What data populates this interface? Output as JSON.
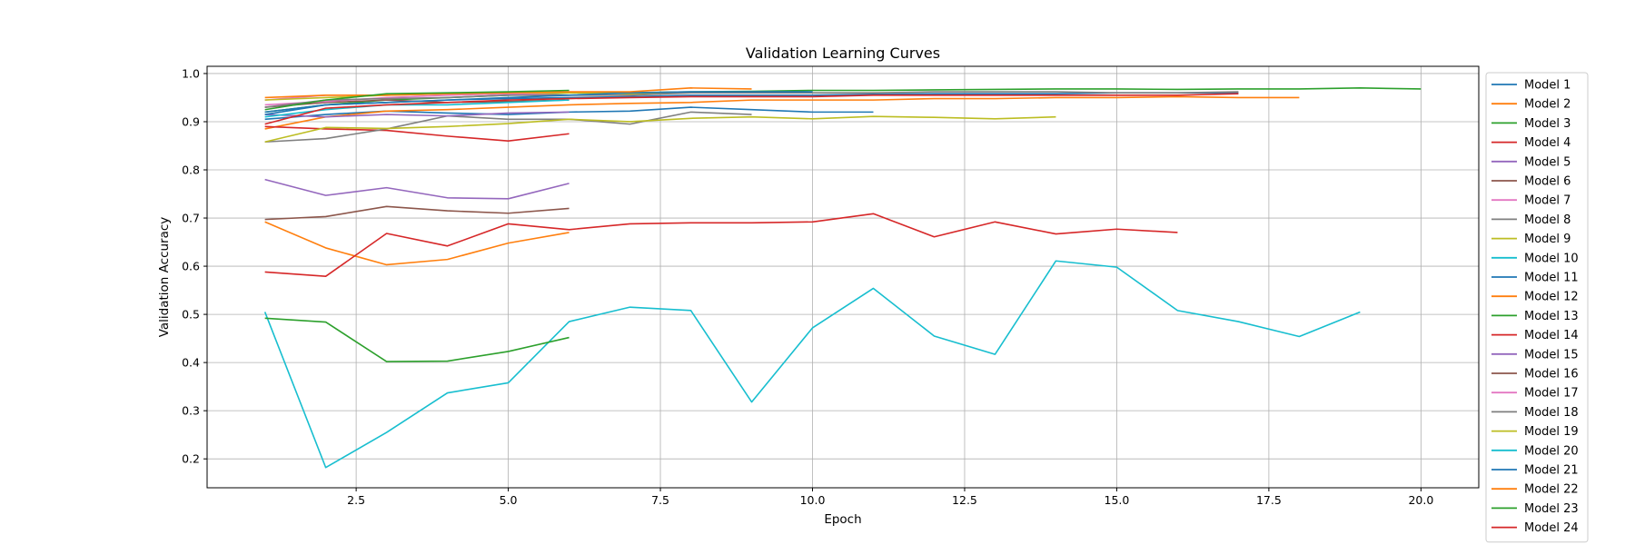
{
  "chart_data": {
    "type": "line",
    "title": "Validation Learning Curves",
    "xlabel": "Epoch",
    "ylabel": "Validation Accuracy",
    "xlim": [
      0.05,
      20.95
    ],
    "ylim": [
      0.14,
      1.015
    ],
    "xticks": [
      2.5,
      5.0,
      7.5,
      10.0,
      12.5,
      15.0,
      17.5,
      20.0
    ],
    "xtick_labels": [
      "2.5",
      "5.0",
      "7.5",
      "10.0",
      "12.5",
      "15.0",
      "17.5",
      "20.0"
    ],
    "yticks": [
      0.2,
      0.3,
      0.4,
      0.5,
      0.6,
      0.7,
      0.8,
      0.9,
      1.0
    ],
    "ytick_labels": [
      "0.2",
      "0.3",
      "0.4",
      "0.5",
      "0.6",
      "0.7",
      "0.8",
      "0.9",
      "1.0"
    ],
    "grid": true,
    "legend_position": "outside-right",
    "series": [
      {
        "name": "Model 1",
        "color": "#1f77b4",
        "x": [
          1,
          2,
          3,
          4,
          5,
          6,
          7,
          8,
          9,
          10,
          11
        ],
        "y": [
          0.905,
          0.915,
          0.922,
          0.918,
          0.915,
          0.92,
          0.922,
          0.93,
          0.925,
          0.92,
          0.92
        ]
      },
      {
        "name": "Model 2",
        "color": "#ff7f0e",
        "x": [
          1,
          2,
          3,
          4,
          5,
          6,
          7,
          8,
          9,
          10,
          11,
          12,
          13,
          14,
          15,
          16,
          17,
          18
        ],
        "y": [
          0.885,
          0.91,
          0.922,
          0.925,
          0.93,
          0.935,
          0.938,
          0.94,
          0.945,
          0.945,
          0.945,
          0.948,
          0.948,
          0.95,
          0.95,
          0.952,
          0.95,
          0.95
        ]
      },
      {
        "name": "Model 3",
        "color": "#2ca02c",
        "x": [
          1,
          2,
          3,
          4,
          5,
          6,
          7,
          8,
          9,
          10,
          11,
          12,
          13,
          14,
          15,
          16,
          17,
          18,
          19,
          20
        ],
        "y": [
          0.92,
          0.935,
          0.945,
          0.95,
          0.955,
          0.96,
          0.96,
          0.962,
          0.963,
          0.965,
          0.965,
          0.966,
          0.967,
          0.968,
          0.968,
          0.967,
          0.968,
          0.968,
          0.97,
          0.968
        ]
      },
      {
        "name": "Model 4",
        "color": "#d62728",
        "x": [
          1,
          2,
          3,
          4,
          5,
          6
        ],
        "y": [
          0.89,
          0.885,
          0.882,
          0.87,
          0.86,
          0.875
        ]
      },
      {
        "name": "Model 5",
        "color": "#9467bd",
        "x": [
          1,
          2,
          3,
          4,
          5,
          6
        ],
        "y": [
          0.78,
          0.747,
          0.763,
          0.742,
          0.74,
          0.772
        ]
      },
      {
        "name": "Model 6",
        "color": "#8c564b",
        "x": [
          1,
          2,
          3,
          4,
          5,
          6
        ],
        "y": [
          0.697,
          0.703,
          0.724,
          0.715,
          0.71,
          0.72
        ]
      },
      {
        "name": "Model 7",
        "color": "#e377c2",
        "x": [
          1,
          2,
          3,
          4,
          5,
          6
        ],
        "y": [
          0.945,
          0.955,
          0.955,
          0.958,
          0.96,
          0.96
        ]
      },
      {
        "name": "Model 8",
        "color": "#7f7f7f",
        "x": [
          1,
          2,
          3,
          4,
          5,
          6,
          7,
          8,
          9
        ],
        "y": [
          0.858,
          0.865,
          0.885,
          0.912,
          0.905,
          0.905,
          0.895,
          0.92,
          0.915
        ]
      },
      {
        "name": "Model 9",
        "color": "#bcbd22",
        "x": [
          1,
          2,
          3,
          4,
          5,
          6,
          7,
          8
        ],
        "y": [
          0.945,
          0.95,
          0.955,
          0.958,
          0.958,
          0.96,
          0.958,
          0.96
        ]
      },
      {
        "name": "Model 10",
        "color": "#17becf",
        "x": [
          1,
          2,
          3,
          4,
          5,
          6,
          7,
          8,
          9,
          10,
          11,
          12,
          13,
          14,
          15,
          16,
          17,
          18,
          19
        ],
        "y": [
          0.505,
          0.182,
          0.255,
          0.337,
          0.358,
          0.485,
          0.515,
          0.508,
          0.318,
          0.472,
          0.554,
          0.455,
          0.417,
          0.611,
          0.598,
          0.508,
          0.485,
          0.454,
          0.505
        ]
      },
      {
        "name": "Model 11",
        "color": "#1f77b4",
        "x": [
          1,
          2,
          3,
          4,
          5,
          6,
          7,
          8,
          9,
          10,
          11,
          12,
          13,
          14,
          15,
          16,
          17
        ],
        "y": [
          0.92,
          0.935,
          0.94,
          0.945,
          0.948,
          0.95,
          0.952,
          0.955,
          0.955,
          0.955,
          0.957,
          0.958,
          0.958,
          0.958,
          0.96,
          0.96,
          0.96
        ]
      },
      {
        "name": "Model 12",
        "color": "#ff7f0e",
        "x": [
          1,
          2,
          3,
          4,
          5,
          6
        ],
        "y": [
          0.692,
          0.638,
          0.603,
          0.614,
          0.648,
          0.67
        ]
      },
      {
        "name": "Model 13",
        "color": "#2ca02c",
        "x": [
          1,
          2,
          3,
          4,
          5,
          6
        ],
        "y": [
          0.492,
          0.484,
          0.402,
          0.403,
          0.423,
          0.452
        ]
      },
      {
        "name": "Model 14",
        "color": "#d62728",
        "x": [
          1,
          2,
          3,
          4,
          5,
          6,
          7,
          8,
          9,
          10,
          11,
          12,
          13,
          14,
          15,
          16
        ],
        "y": [
          0.588,
          0.579,
          0.668,
          0.642,
          0.688,
          0.676,
          0.688,
          0.69,
          0.69,
          0.692,
          0.709,
          0.661,
          0.692,
          0.667,
          0.677,
          0.67
        ]
      },
      {
        "name": "Model 15",
        "color": "#9467bd",
        "x": [
          1,
          2,
          3,
          4,
          5,
          6
        ],
        "y": [
          0.915,
          0.91,
          0.915,
          0.912,
          0.918,
          0.92
        ]
      },
      {
        "name": "Model 16",
        "color": "#8c564b",
        "x": [
          1,
          2,
          3,
          4,
          5,
          6
        ],
        "y": [
          0.93,
          0.94,
          0.945,
          0.94,
          0.942,
          0.945
        ]
      },
      {
        "name": "Model 17",
        "color": "#e377c2",
        "x": [
          1,
          2,
          3,
          4,
          5,
          6
        ],
        "y": [
          0.935,
          0.942,
          0.95,
          0.955,
          0.958,
          0.955
        ]
      },
      {
        "name": "Model 18",
        "color": "#7f7f7f",
        "x": [
          1,
          2,
          3,
          4,
          5,
          6,
          7,
          8,
          9,
          10,
          11,
          12,
          13,
          14,
          15,
          16,
          17
        ],
        "y": [
          0.93,
          0.945,
          0.948,
          0.95,
          0.955,
          0.955,
          0.955,
          0.96,
          0.96,
          0.96,
          0.96,
          0.962,
          0.962,
          0.962,
          0.96,
          0.96,
          0.962
        ]
      },
      {
        "name": "Model 19",
        "color": "#bcbd22",
        "x": [
          1,
          2,
          3,
          4,
          5,
          6,
          7,
          8,
          9,
          10,
          11,
          12,
          13,
          14
        ],
        "y": [
          0.858,
          0.888,
          0.886,
          0.89,
          0.896,
          0.905,
          0.9,
          0.907,
          0.91,
          0.906,
          0.911,
          0.909,
          0.906,
          0.91
        ]
      },
      {
        "name": "Model 20",
        "color": "#17becf",
        "x": [
          1,
          2,
          3,
          4,
          5,
          6
        ],
        "y": [
          0.91,
          0.925,
          0.935,
          0.935,
          0.94,
          0.945
        ]
      },
      {
        "name": "Model 21",
        "color": "#1f77b4",
        "x": [
          1,
          2,
          3,
          4,
          5,
          6,
          7,
          8,
          9,
          10
        ],
        "y": [
          0.915,
          0.935,
          0.94,
          0.945,
          0.95,
          0.955,
          0.96,
          0.962,
          0.962,
          0.962
        ]
      },
      {
        "name": "Model 22",
        "color": "#ff7f0e",
        "x": [
          1,
          2,
          3,
          4,
          5,
          6,
          7,
          8,
          9
        ],
        "y": [
          0.95,
          0.955,
          0.955,
          0.958,
          0.96,
          0.962,
          0.962,
          0.97,
          0.968
        ]
      },
      {
        "name": "Model 23",
        "color": "#2ca02c",
        "x": [
          1,
          2,
          3,
          4,
          5,
          6
        ],
        "y": [
          0.925,
          0.945,
          0.958,
          0.96,
          0.962,
          0.965
        ]
      },
      {
        "name": "Model 24",
        "color": "#d62728",
        "x": [
          1,
          2,
          3,
          4,
          5,
          6,
          7,
          8,
          9,
          10,
          11,
          12,
          13,
          14,
          15,
          16,
          17
        ],
        "y": [
          0.895,
          0.928,
          0.935,
          0.94,
          0.945,
          0.948,
          0.95,
          0.952,
          0.952,
          0.952,
          0.955,
          0.955,
          0.955,
          0.955,
          0.955,
          0.955,
          0.958
        ]
      }
    ]
  }
}
